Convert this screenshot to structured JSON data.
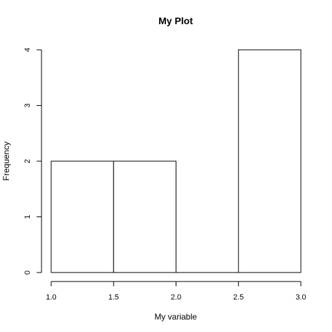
{
  "chart_data": {
    "type": "bar",
    "title": "My Plot",
    "xlabel": "My variable",
    "ylabel": "Frequency",
    "bins": [
      {
        "x0": 1.0,
        "x1": 1.5,
        "value": 2
      },
      {
        "x0": 1.5,
        "x1": 2.0,
        "value": 2
      },
      {
        "x0": 2.0,
        "x1": 2.5,
        "value": 0
      },
      {
        "x0": 2.5,
        "x1": 3.0,
        "value": 4
      }
    ],
    "xticks": [
      1.0,
      1.5,
      2.0,
      2.5,
      3.0
    ],
    "xtick_labels": [
      "1.0",
      "1.5",
      "2.0",
      "2.5",
      "3.0"
    ],
    "yticks": [
      0,
      1,
      2,
      3,
      4
    ],
    "ytick_labels": [
      "0",
      "1",
      "2",
      "3",
      "4"
    ],
    "xlim": [
      1.0,
      3.0
    ],
    "ylim": [
      0,
      4
    ],
    "grid": false,
    "legend": "none",
    "colors": {
      "bar_fill": "#ffffff",
      "bar_stroke": "#000000",
      "axis": "#000000",
      "background": "#ffffff"
    }
  }
}
